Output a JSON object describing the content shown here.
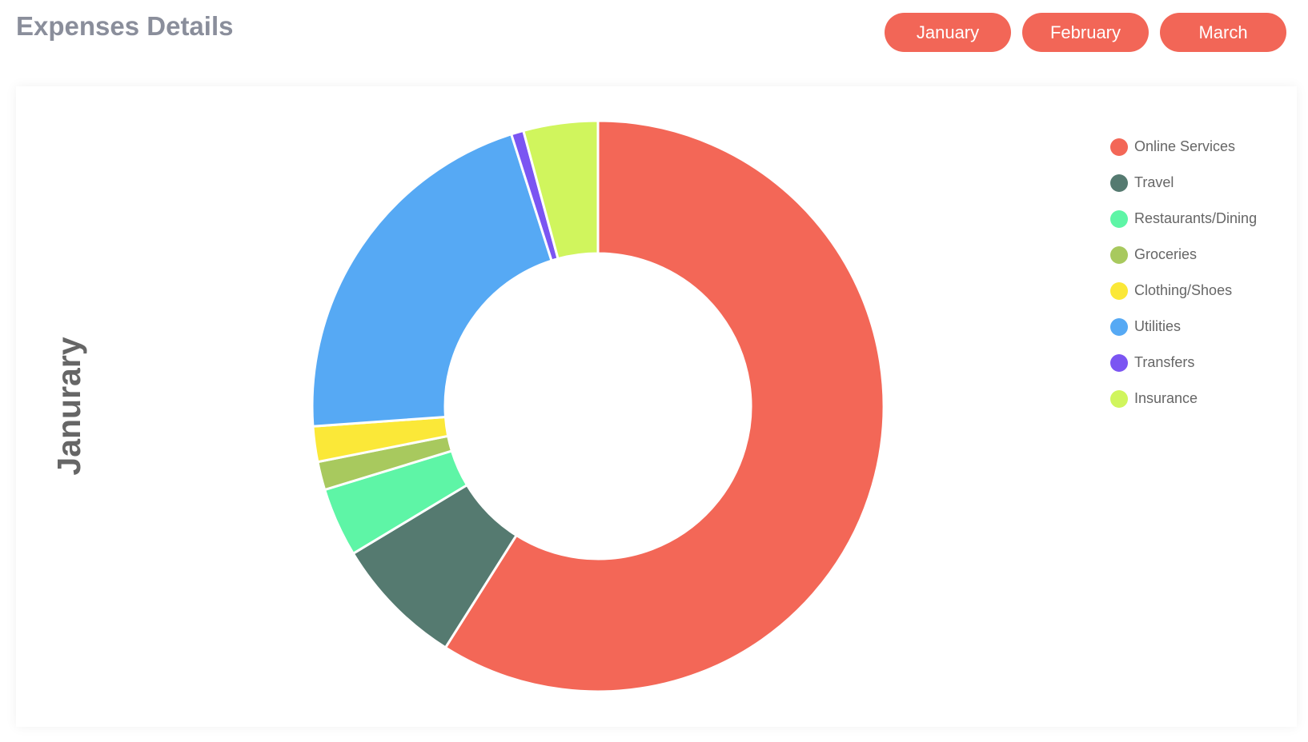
{
  "header": {
    "title": "Expenses Details",
    "buttons": [
      "January",
      "February",
      "March"
    ]
  },
  "chart_data": {
    "type": "donut",
    "title": "Janurary",
    "categories": [
      "Online Services",
      "Travel",
      "Restaurants/Dining",
      "Groceries",
      "Clothing/Shoes",
      "Utilities",
      "Transfers",
      "Insurance"
    ],
    "values": [
      58.9,
      7.4,
      3.9,
      1.6,
      2.0,
      21.2,
      0.7,
      4.2
    ],
    "colors": [
      "#f36757",
      "#557a70",
      "#5ef5a6",
      "#a8c95e",
      "#fbe838",
      "#56a9f4",
      "#7b55f2",
      "#d0f55d"
    ],
    "legend": "top-right"
  }
}
